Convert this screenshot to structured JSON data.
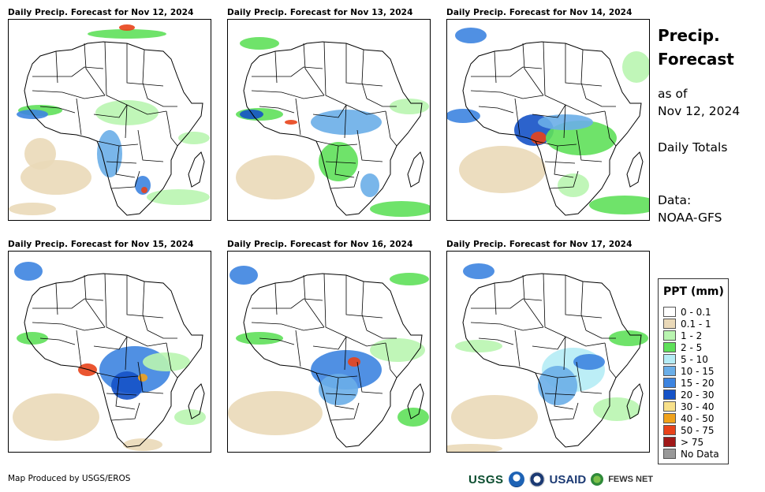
{
  "panels": [
    {
      "title": "Daily Precip. Forecast for Nov 12, 2024"
    },
    {
      "title": "Daily Precip. Forecast for Nov 13, 2024"
    },
    {
      "title": "Daily Precip. Forecast for Nov 14, 2024"
    },
    {
      "title": "Daily Precip. Forecast for Nov 15, 2024"
    },
    {
      "title": "Daily Precip. Forecast for Nov 16, 2024"
    },
    {
      "title": "Daily Precip. Forecast for Nov 17, 2024"
    }
  ],
  "side": {
    "title_line1": "Precip.",
    "title_line2": "Forecast",
    "as_of_line1": "as of",
    "as_of_line2": "Nov 12, 2024",
    "totals": "Daily Totals",
    "data_line1": "Data:",
    "data_line2": "NOAA-GFS"
  },
  "legend": {
    "title": "PPT (mm)",
    "items": [
      {
        "label": "0 - 0.1",
        "color": "#ffffff"
      },
      {
        "label": "0.1 - 1",
        "color": "#ead9b8"
      },
      {
        "label": "1 - 2",
        "color": "#b9f5b0"
      },
      {
        "label": "2 - 5",
        "color": "#5fe05a"
      },
      {
        "label": "5 - 10",
        "color": "#b5ecf5"
      },
      {
        "label": "10 - 15",
        "color": "#6aaee8"
      },
      {
        "label": "15 - 20",
        "color": "#3d84e0"
      },
      {
        "label": "20 - 30",
        "color": "#1552c7"
      },
      {
        "label": "30 - 40",
        "color": "#f7e08a"
      },
      {
        "label": "40 - 50",
        "color": "#f0a21c"
      },
      {
        "label": "50 - 75",
        "color": "#e8421a"
      },
      {
        "label": "> 75",
        "color": "#a01818"
      },
      {
        "label": "No Data",
        "color": "#999999"
      }
    ]
  },
  "footer": {
    "credit": "Map Produced by USGS/EROS"
  },
  "logos": {
    "usgs": "USGS",
    "usaid": "USAID",
    "fews": "FEWS NET"
  }
}
